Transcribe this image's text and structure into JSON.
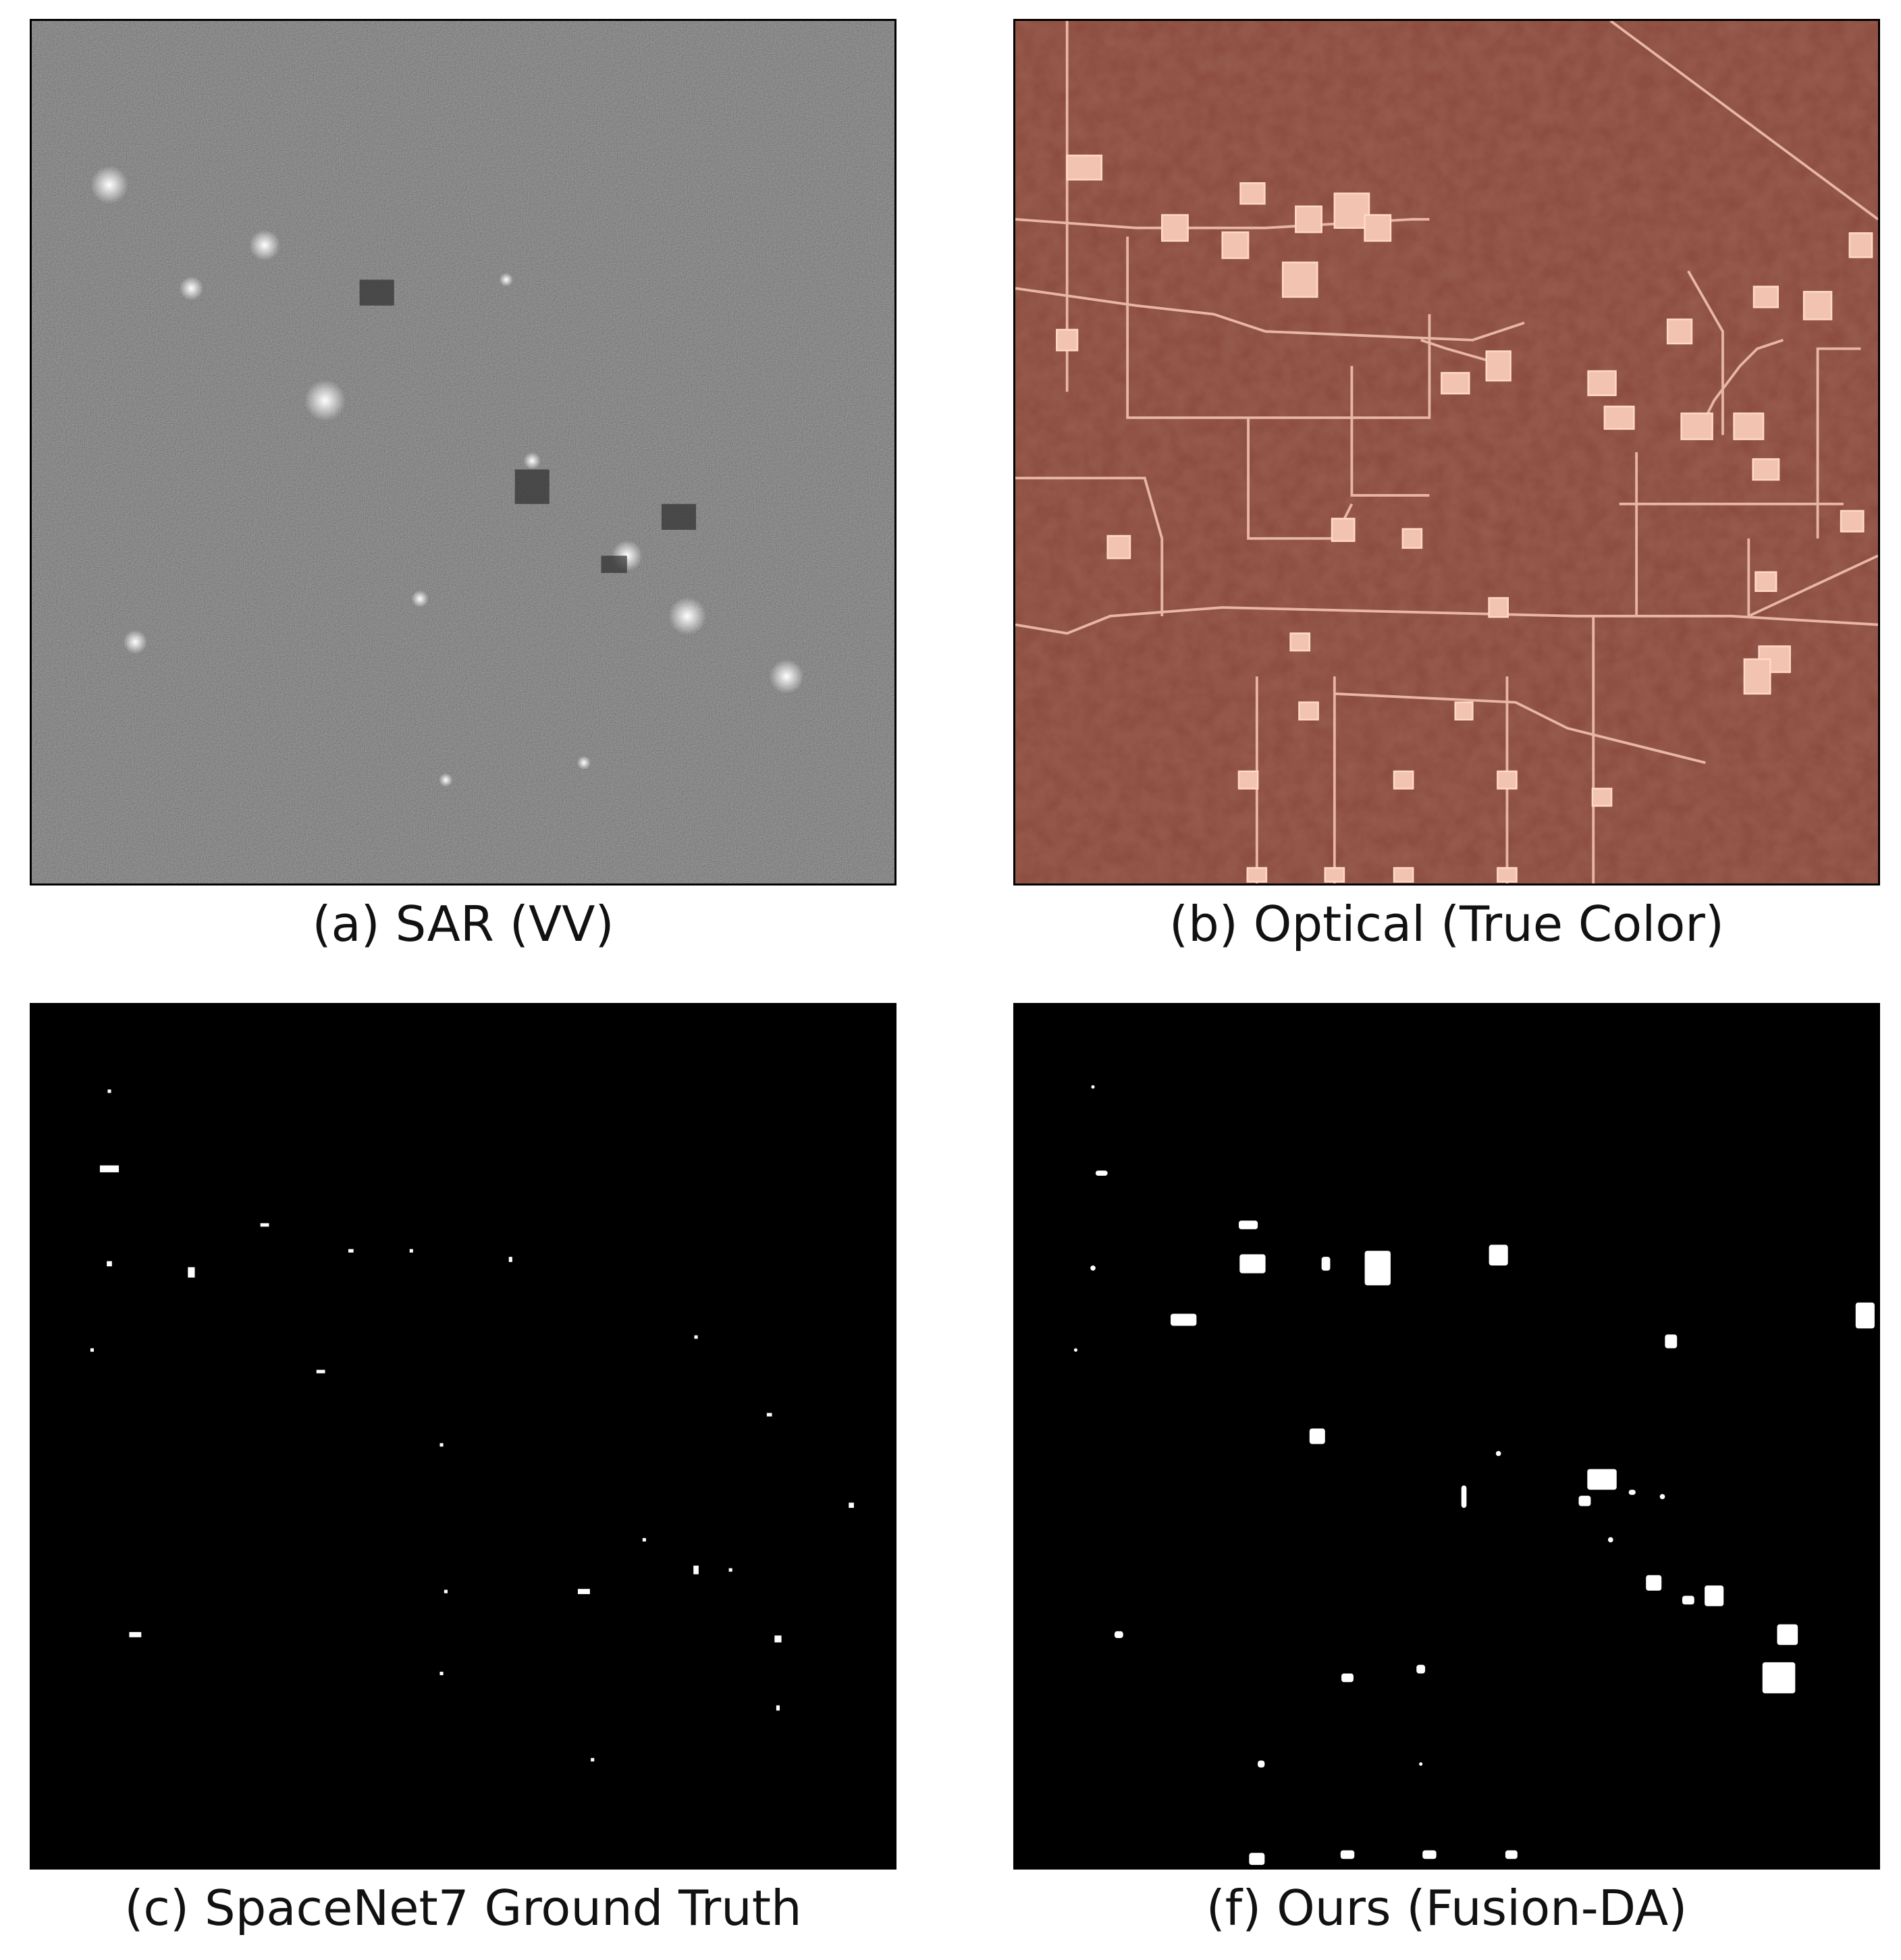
{
  "figure": {
    "panels": [
      {
        "id": "sar",
        "caption": "(a) SAR (VV)"
      },
      {
        "id": "optical",
        "caption": "(b) Optical (True Color)"
      },
      {
        "id": "ground_truth",
        "caption": "(c) SpaceNet7 Ground Truth"
      },
      {
        "id": "prediction",
        "caption": "(f) Ours (Fusion-DA)"
      }
    ]
  },
  "colors": {
    "sar_background": "#4a4a4a",
    "optical_background": "#8a4a3c",
    "optical_road": "#e8b7a4",
    "mask_background": "#000000",
    "mask_foreground": "#ffffff"
  }
}
